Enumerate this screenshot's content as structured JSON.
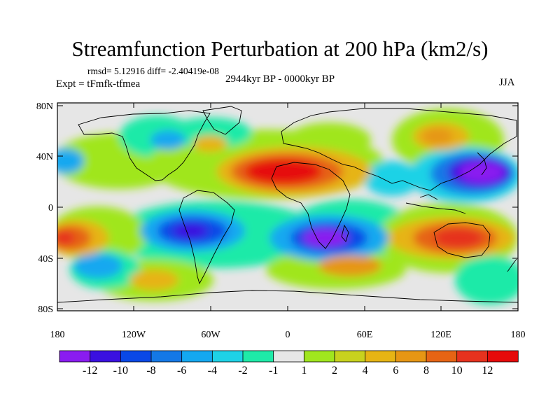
{
  "header": {
    "title": "Streamfunction Perturbation at 200 hPa (km2/s)",
    "stats": "rmsd= 5.12916 diff= -2.40419e-08",
    "experiment": "Expt = tFmfk-tfmea",
    "period": "2944kyr BP - 0000kyr BP",
    "season": "JJA"
  },
  "axes": {
    "y_labels": [
      "80N",
      "40N",
      "0",
      "40S",
      "80S"
    ],
    "x_labels": [
      "180",
      "120W",
      "60W",
      "0",
      "60E",
      "120E",
      "180"
    ]
  },
  "colorbar": {
    "labels": [
      "-12",
      "-10",
      "-8",
      "-6",
      "-4",
      "-2",
      "-1",
      "1",
      "2",
      "4",
      "6",
      "8",
      "10",
      "12"
    ],
    "colors": [
      "#8a1cf0",
      "#3a10e0",
      "#0a48e6",
      "#1478e6",
      "#14a8f0",
      "#1ed2e6",
      "#1eeaa8",
      "#e6e6e6",
      "#a0e61e",
      "#c8d21e",
      "#e6b414",
      "#e69614",
      "#e66414",
      "#e6321e",
      "#e60a0a"
    ]
  },
  "map": {
    "ocean_background": "#e6e6e6",
    "coastline_color": "#000000"
  }
}
